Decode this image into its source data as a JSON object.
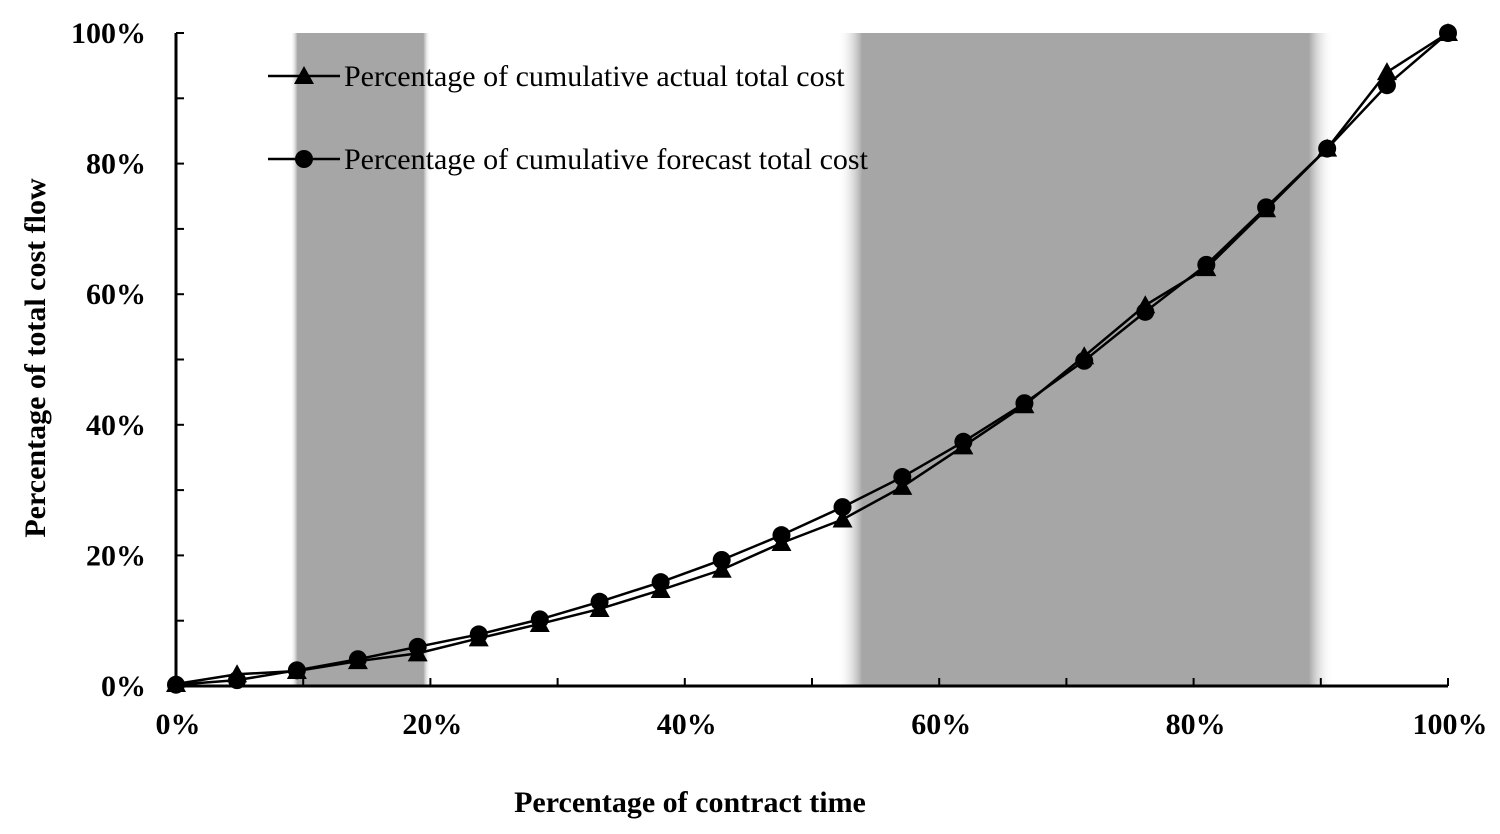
{
  "chart_data": {
    "type": "line",
    "title": "",
    "xlabel": "Percentage of contract time",
    "ylabel": "Percentage of total cost flow",
    "xlim": [
      0,
      100
    ],
    "ylim": [
      0,
      100
    ],
    "x_ticks": [
      0,
      20,
      40,
      60,
      80,
      100
    ],
    "y_ticks": [
      0,
      20,
      40,
      60,
      80,
      100
    ],
    "x_tick_labels": [
      "0%",
      "20%",
      "40%",
      "60%",
      "80%",
      "100%"
    ],
    "y_tick_labels": [
      "0%",
      "20%",
      "40%",
      "60%",
      "80%",
      "100%"
    ],
    "grid": false,
    "legend_position": "top-left",
    "shaded_regions": [
      [
        9,
        20
      ],
      [
        52,
        91
      ]
    ],
    "colors": {
      "line": "#000000",
      "shade": "#a6a6a6"
    },
    "series": [
      {
        "name": "Percentage of cumulative actual total cost",
        "marker": "triangle",
        "x": [
          0,
          4.8,
          9.5,
          14.3,
          19.0,
          23.8,
          28.6,
          33.3,
          38.1,
          42.9,
          47.6,
          52.4,
          57.1,
          61.9,
          66.7,
          71.4,
          76.2,
          81.0,
          85.7,
          90.5,
          95.2,
          100
        ],
        "y": [
          0.3,
          1.8,
          2.3,
          3.8,
          5.0,
          7.3,
          9.5,
          11.8,
          14.7,
          17.8,
          21.9,
          25.5,
          30.5,
          36.7,
          43.0,
          50.5,
          58.3,
          64.0,
          73.0,
          82.3,
          94.0,
          100
        ]
      },
      {
        "name": "Percentage of cumulative forecast total cost",
        "marker": "circle",
        "x": [
          0,
          4.8,
          9.5,
          14.3,
          19.0,
          23.8,
          28.6,
          33.3,
          38.1,
          42.9,
          47.6,
          52.4,
          57.1,
          61.9,
          66.7,
          71.4,
          76.2,
          81.0,
          85.7,
          90.5,
          95.2,
          100
        ],
        "y": [
          0.2,
          0.9,
          2.4,
          4.1,
          6.0,
          7.9,
          10.2,
          12.9,
          15.9,
          19.3,
          23.1,
          27.4,
          32.0,
          37.4,
          43.3,
          49.8,
          57.3,
          64.5,
          73.3,
          82.3,
          92.0,
          100
        ]
      }
    ]
  }
}
